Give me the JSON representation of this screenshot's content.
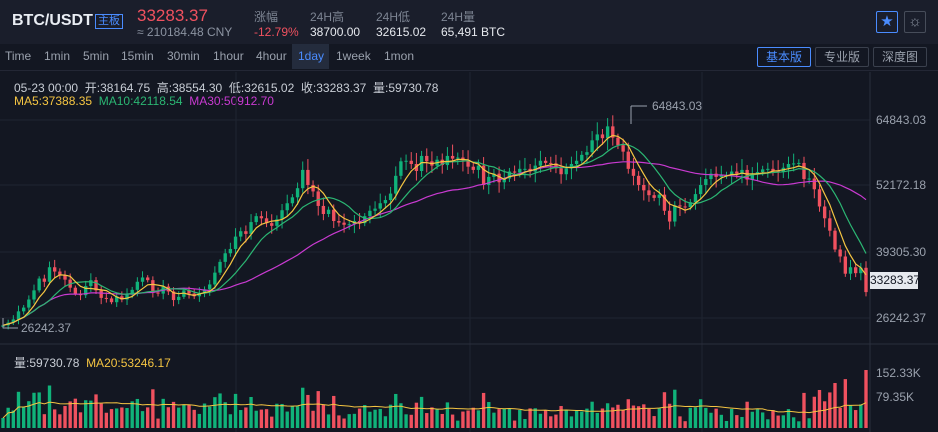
{
  "header": {
    "pair": "BTC/USDT",
    "tag": "主板",
    "price": "33283.37",
    "cny": "≈ 210184.48 CNY",
    "stats": [
      {
        "label": "涨幅",
        "value": "-12.79%"
      },
      {
        "label": "24H高",
        "value": "38700.00"
      },
      {
        "label": "24H低",
        "value": "32615.02"
      },
      {
        "label": "24H量",
        "value": "65,491 BTC"
      }
    ]
  },
  "tabs": [
    "Time",
    "1min",
    "5min",
    "15min",
    "30min",
    "1hour",
    "4hour",
    "1day",
    "1week",
    "1mon"
  ],
  "active_tab": "1day",
  "views": [
    "基本版",
    "专业版",
    "深度图"
  ],
  "active_view": "基本版",
  "icons": {
    "favorite": "star-icon",
    "theme": "sun-icon"
  },
  "colors": {
    "up": "#10b27a",
    "down": "#f0515f",
    "accent": "#4a8cff",
    "ma5": "#f5c542",
    "ma10": "#2bb673",
    "ma30": "#c93ad1",
    "ma20": "#f5c542"
  },
  "ohlc": {
    "date": "05-23 00:00",
    "open": "开:38164.75",
    "high": "高:38554.30",
    "low": "低:32615.02",
    "close": "收:33283.37",
    "vol": "量:59730.78"
  },
  "ma": {
    "ma5": "MA5:37388.35",
    "ma10": "MA10:42118.54",
    "ma30": "MA30:50912.70"
  },
  "annotations": {
    "high": "64843.03",
    "low": "26242.37"
  },
  "price_axis": [
    "64843.03",
    "52172.18",
    "39305.30",
    "26242.37"
  ],
  "current_price_label": "33283.37",
  "volume": {
    "vol": "量:59730.78",
    "ma20": "MA20:53246.17",
    "axis": [
      "152.33K",
      "79.35K"
    ]
  },
  "chart_data": {
    "type": "candlestick",
    "interval": "1day",
    "y_range": [
      24000,
      69000
    ],
    "closes": [
      27100,
      27600,
      28200,
      29700,
      30400,
      31900,
      33600,
      35800,
      35200,
      37900,
      37100,
      36400,
      35600,
      34100,
      33000,
      32700,
      34400,
      35500,
      33600,
      32200,
      32100,
      31400,
      32500,
      31900,
      32800,
      33700,
      35200,
      36000,
      35500,
      33200,
      33000,
      34300,
      33400,
      31800,
      32400,
      33600,
      33000,
      32500,
      33000,
      33800,
      34700,
      36900,
      38900,
      40500,
      41300,
      43600,
      44600,
      44100,
      46300,
      47400,
      47000,
      46100,
      45600,
      46800,
      48500,
      49800,
      50900,
      52600,
      56000,
      53200,
      52000,
      49300,
      47800,
      48600,
      46500,
      46200,
      45800,
      45900,
      46500,
      46100,
      47400,
      48400,
      48800,
      49800,
      50400,
      51600,
      54900,
      57600,
      57700,
      57100,
      55800,
      58600,
      57600,
      56800,
      57900,
      56900,
      58600,
      58100,
      58300,
      57800,
      56600,
      56000,
      56800,
      53200,
      54700,
      55300,
      53700,
      54400,
      55700,
      55500,
      56200,
      56200,
      55700,
      56800,
      57700,
      57300,
      57200,
      56300,
      55200,
      56300,
      57100,
      57700,
      58800,
      59300,
      61500,
      62600,
      61900,
      64100,
      62000,
      60600,
      59400,
      56200,
      54900,
      53200,
      52200,
      51300,
      50800,
      51400,
      48400,
      46400,
      49400,
      49200,
      49100,
      50000,
      51500,
      53200,
      54300,
      55300,
      54700,
      55000,
      55000,
      55700,
      55300,
      56000,
      54200,
      55200,
      55600,
      56100,
      56200,
      55800,
      55600,
      56400,
      57100,
      57200,
      57300,
      54300,
      54400,
      52400,
      49200,
      47000,
      44700,
      41200,
      39900,
      36700,
      37900,
      36800,
      37800,
      33283
    ]
  }
}
